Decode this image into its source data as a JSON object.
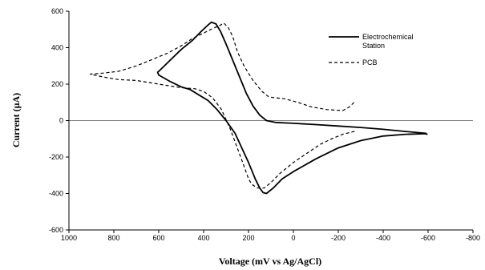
{
  "chart_data": {
    "type": "line",
    "title": "",
    "xlabel": "Voltage (mV vs Ag/AgCl)",
    "ylabel": "Current (µA)",
    "xlim": [
      1000,
      -800
    ],
    "ylim": [
      -600,
      600
    ],
    "x_ticks": [
      1000,
      800,
      600,
      400,
      200,
      0,
      -200,
      -400,
      -600,
      -800
    ],
    "y_ticks": [
      600,
      400,
      200,
      0,
      -200,
      -400,
      -600
    ],
    "x_tick_labels": [
      "1000",
      "800",
      "600",
      "400",
      "200",
      "0",
      "-200",
      "-400",
      "-600",
      "-800"
    ],
    "y_tick_labels": [
      "600",
      "400",
      "200",
      "0",
      "-200",
      "-400",
      "-600"
    ],
    "grid": false,
    "legend_position": "top-right",
    "series": [
      {
        "name": "Electrochemical Station",
        "style": "solid",
        "color": "#000000",
        "points": [
          [
            600,
            270
          ],
          [
            550,
            330
          ],
          [
            500,
            390
          ],
          [
            450,
            440
          ],
          [
            410,
            490
          ],
          [
            380,
            525
          ],
          [
            365,
            540
          ],
          [
            345,
            530
          ],
          [
            325,
            490
          ],
          [
            300,
            420
          ],
          [
            270,
            330
          ],
          [
            240,
            240
          ],
          [
            210,
            150
          ],
          [
            180,
            80
          ],
          [
            150,
            30
          ],
          [
            120,
            0
          ],
          [
            80,
            -10
          ],
          [
            0,
            -15
          ],
          [
            -100,
            -22
          ],
          [
            -200,
            -30
          ],
          [
            -300,
            -38
          ],
          [
            -400,
            -48
          ],
          [
            -500,
            -60
          ],
          [
            -590,
            -70
          ],
          [
            -595,
            -75
          ],
          [
            -590,
            -72
          ],
          [
            -500,
            -75
          ],
          [
            -400,
            -85
          ],
          [
            -300,
            -110
          ],
          [
            -200,
            -150
          ],
          [
            -100,
            -210
          ],
          [
            0,
            -280
          ],
          [
            50,
            -320
          ],
          [
            90,
            -370
          ],
          [
            120,
            -400
          ],
          [
            135,
            -395
          ],
          [
            150,
            -370
          ],
          [
            170,
            -320
          ],
          [
            200,
            -230
          ],
          [
            230,
            -150
          ],
          [
            260,
            -70
          ],
          [
            300,
            0
          ],
          [
            340,
            60
          ],
          [
            380,
            110
          ],
          [
            420,
            140
          ],
          [
            460,
            170
          ],
          [
            500,
            185
          ],
          [
            550,
            215
          ],
          [
            600,
            250
          ],
          [
            605,
            265
          ],
          [
            600,
            270
          ]
        ]
      },
      {
        "name": "PCB",
        "style": "dashed",
        "color": "#000000",
        "points": [
          [
            -270,
            100
          ],
          [
            -250,
            75
          ],
          [
            -220,
            55
          ],
          [
            -150,
            60
          ],
          [
            -80,
            75
          ],
          [
            -20,
            100
          ],
          [
            40,
            120
          ],
          [
            80,
            125
          ],
          [
            110,
            130
          ],
          [
            140,
            160
          ],
          [
            180,
            220
          ],
          [
            220,
            300
          ],
          [
            250,
            380
          ],
          [
            270,
            460
          ],
          [
            290,
            510
          ],
          [
            310,
            535
          ],
          [
            330,
            520
          ],
          [
            360,
            505
          ],
          [
            400,
            480
          ],
          [
            450,
            450
          ],
          [
            500,
            410
          ],
          [
            560,
            370
          ],
          [
            620,
            340
          ],
          [
            700,
            300
          ],
          [
            780,
            270
          ],
          [
            850,
            260
          ],
          [
            905,
            255
          ],
          [
            850,
            240
          ],
          [
            780,
            225
          ],
          [
            700,
            220
          ],
          [
            600,
            200
          ],
          [
            500,
            180
          ],
          [
            440,
            175
          ],
          [
            400,
            160
          ],
          [
            360,
            125
          ],
          [
            320,
            60
          ],
          [
            280,
            -50
          ],
          [
            250,
            -150
          ],
          [
            220,
            -250
          ],
          [
            200,
            -320
          ],
          [
            185,
            -350
          ],
          [
            160,
            -370
          ],
          [
            130,
            -370
          ],
          [
            100,
            -340
          ],
          [
            60,
            -290
          ],
          [
            0,
            -230
          ],
          [
            -60,
            -180
          ],
          [
            -120,
            -130
          ],
          [
            -170,
            -100
          ],
          [
            -220,
            -75
          ],
          [
            -270,
            -60
          ],
          [
            -275,
            -60
          ]
        ]
      }
    ]
  }
}
